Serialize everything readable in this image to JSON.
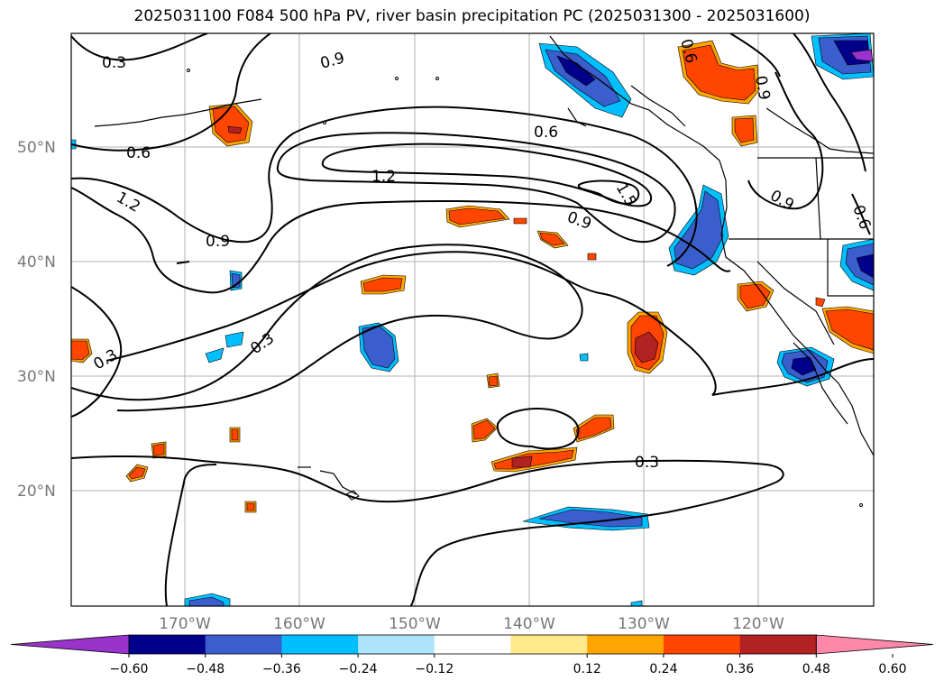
{
  "title": "2025031100 F084 500 hPa PV, river basin precipitation PC (2025031300 - 2025031600)",
  "latitude_labels": [
    "50°N",
    "40°N",
    "30°N",
    "20°N"
  ],
  "longitude_labels": [
    "170°W",
    "160°W",
    "150°W",
    "140°W",
    "130°W",
    "120°W"
  ],
  "contour_labels": [
    "0.3",
    "0.6",
    "0.9",
    "1.2",
    "0.6",
    "1.2",
    "1.5",
    "0.9",
    "0.9",
    "0.9",
    "0.6",
    "0.9",
    "0.3",
    "0.3",
    "0.3",
    "0.6"
  ],
  "colorbar": {
    "tick_labels": [
      "−0.60",
      "−0.48",
      "−0.36",
      "−0.24",
      "−0.12",
      "0.12",
      "0.24",
      "0.36",
      "0.48",
      "0.60"
    ],
    "colors": [
      "#9933cc",
      "#00008b",
      "#3a5fcd",
      "#00bfff",
      "#ade3fb",
      "#ffffff",
      "#ffe98a",
      "#ffa500",
      "#ff4500",
      "#b22222",
      "#ff88aa"
    ]
  }
}
